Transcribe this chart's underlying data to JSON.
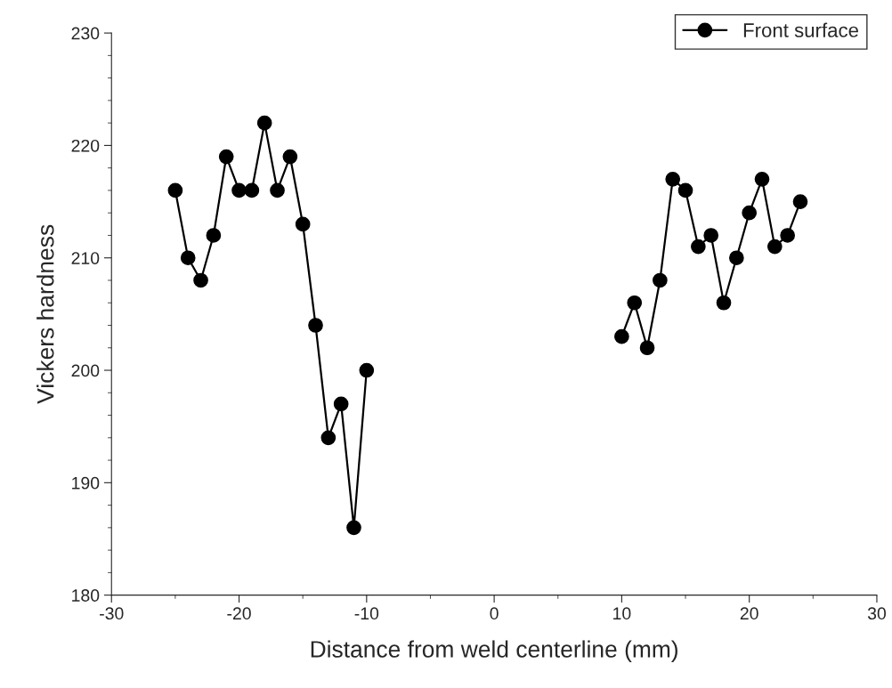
{
  "chart_data": {
    "type": "line",
    "xlabel": "Distance from weld centerline (mm)",
    "ylabel": "Vickers hardness",
    "series": [
      {
        "name": "Front surface",
        "color": "#000000",
        "x": [
          -25,
          -24,
          -23,
          -22,
          -21,
          -20,
          -19,
          -18,
          -17,
          -16,
          -15,
          -14,
          -13,
          -12,
          -11,
          -10,
          0,
          10,
          11,
          12,
          13,
          14,
          15,
          16,
          17,
          18,
          19,
          20,
          21,
          22,
          23,
          24
        ],
        "values": [
          216,
          210,
          208,
          212,
          219,
          216,
          216,
          222,
          216,
          219,
          213,
          204,
          194,
          197,
          186,
          200,
          null,
          203,
          206,
          202,
          208,
          217,
          216,
          211,
          212,
          206,
          210,
          214,
          217,
          211,
          212,
          215
        ]
      }
    ],
    "xlim": [
      -30,
      30
    ],
    "xticks": [
      -30,
      -20,
      -10,
      0,
      10,
      20,
      30
    ],
    "ylim": [
      180,
      230
    ],
    "yticks": [
      180,
      190,
      200,
      210,
      220,
      230
    ],
    "marker": "circle",
    "line_style": "solid",
    "grid": false,
    "legend": "top right"
  }
}
